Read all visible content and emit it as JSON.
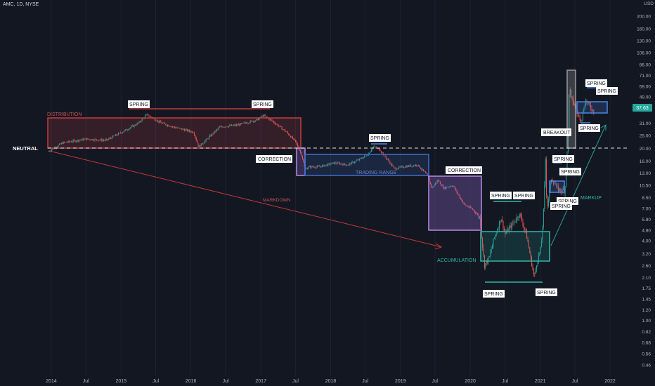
{
  "header": {
    "symbol": "AMC, 1D, NYSE"
  },
  "chart_data": {
    "type": "candlestick",
    "price_scale": "log",
    "currency": "USD",
    "ylim": [
      0.4,
      240
    ],
    "y_ticks": [
      240.0,
      200.0,
      160.0,
      130.0,
      106.0,
      86.0,
      71.0,
      59.0,
      49.0,
      40.0,
      31.0,
      25.0,
      20.0,
      16.0,
      13.0,
      10.5,
      8.5,
      7.0,
      5.8,
      4.8,
      4.0,
      3.2,
      2.6,
      2.1,
      1.75,
      1.45,
      1.2,
      1.0,
      0.82,
      0.68,
      0.56,
      0.46
    ],
    "x_ticks": [
      "2014",
      "Jul",
      "2015",
      "Jul",
      "2016",
      "Jul",
      "2017",
      "Jul",
      "2018",
      "Jul",
      "2019",
      "Jul",
      "2020",
      "Jul",
      "2021",
      "Jul",
      "2022"
    ],
    "last_price": "37.63",
    "neutral_level": 19.0,
    "colors": {
      "up": "#26a69a",
      "down": "#ef5350",
      "background": "#131722",
      "text": "#d1d4dc",
      "grid": "#1e2230"
    },
    "price_path": [
      [
        "2013-12-18",
        19.0
      ],
      [
        "2014-03-01",
        22.0
      ],
      [
        "2014-07-01",
        23.5
      ],
      [
        "2014-10-15",
        23.0
      ],
      [
        "2015-01-15",
        27.0
      ],
      [
        "2015-04-01",
        31.0
      ],
      [
        "2015-05-15",
        36.0
      ],
      [
        "2015-08-01",
        31.0
      ],
      [
        "2015-10-01",
        29.0
      ],
      [
        "2016-01-15",
        26.5
      ],
      [
        "2016-02-10",
        20.5
      ],
      [
        "2016-04-01",
        24.0
      ],
      [
        "2016-06-01",
        29.0
      ],
      [
        "2016-09-01",
        30.0
      ],
      [
        "2016-12-15",
        33.0
      ],
      [
        "2017-01-15",
        35.5
      ],
      [
        "2017-03-10",
        31.5
      ],
      [
        "2017-05-15",
        26.5
      ],
      [
        "2017-07-01",
        22.5
      ],
      [
        "2017-08-01",
        18.0
      ],
      [
        "2017-08-20",
        14.0
      ],
      [
        "2017-09-15",
        14.5
      ],
      [
        "2017-11-01",
        14.5
      ],
      [
        "2018-01-20",
        15.5
      ],
      [
        "2018-04-01",
        15.0
      ],
      [
        "2018-06-01",
        16.5
      ],
      [
        "2018-07-15",
        18.0
      ],
      [
        "2018-08-10",
        20.5
      ],
      [
        "2018-09-15",
        19.5
      ],
      [
        "2018-12-01",
        14.0
      ],
      [
        "2019-01-15",
        14.5
      ],
      [
        "2019-04-01",
        15.0
      ],
      [
        "2019-05-20",
        12.5
      ],
      [
        "2019-06-15",
        10.0
      ],
      [
        "2019-07-15",
        11.5
      ],
      [
        "2019-08-15",
        10.0
      ],
      [
        "2019-10-01",
        10.5
      ],
      [
        "2019-12-01",
        7.5
      ],
      [
        "2020-01-15",
        6.9
      ],
      [
        "2020-02-20",
        6.0
      ],
      [
        "2020-03-15",
        2.6
      ],
      [
        "2020-04-10",
        3.0
      ],
      [
        "2020-05-01",
        4.0
      ],
      [
        "2020-06-10",
        6.0
      ],
      [
        "2020-07-01",
        4.5
      ],
      [
        "2020-08-15",
        5.5
      ],
      [
        "2020-09-15",
        6.4
      ],
      [
        "2020-10-20",
        4.5
      ],
      [
        "2020-12-01",
        2.1
      ],
      [
        "2020-12-15",
        2.8
      ],
      [
        "2021-01-05",
        3.5
      ],
      [
        "2021-01-22",
        8.0
      ],
      [
        "2021-01-27",
        19.9
      ],
      [
        "2021-02-05",
        7.0
      ],
      [
        "2021-03-01",
        12.0
      ],
      [
        "2021-04-01",
        9.8
      ],
      [
        "2021-05-10",
        9.5
      ],
      [
        "2021-05-28",
        26.0
      ],
      [
        "2021-06-02",
        62.0
      ],
      [
        "2021-06-10",
        48.0
      ],
      [
        "2021-06-25",
        44.0
      ],
      [
        "2021-07-15",
        36.0
      ],
      [
        "2021-08-05",
        33.0
      ],
      [
        "2021-08-25",
        46.0
      ],
      [
        "2021-09-15",
        42.0
      ],
      [
        "2021-10-10",
        37.63
      ]
    ]
  },
  "annotations": {
    "neutral": "NEUTRAL",
    "distribution": "DISTRIBUTION",
    "correction": "CORRECTION",
    "correction2": "CORRECTION",
    "trading_range": "TRADING RANGE",
    "markdown": "MARKDOWN",
    "accumulation": "ACCUMULATION",
    "breakout": "BREAKOUT",
    "markup": "MARKUP",
    "spring": "SPRING",
    "spring_count": 13
  }
}
